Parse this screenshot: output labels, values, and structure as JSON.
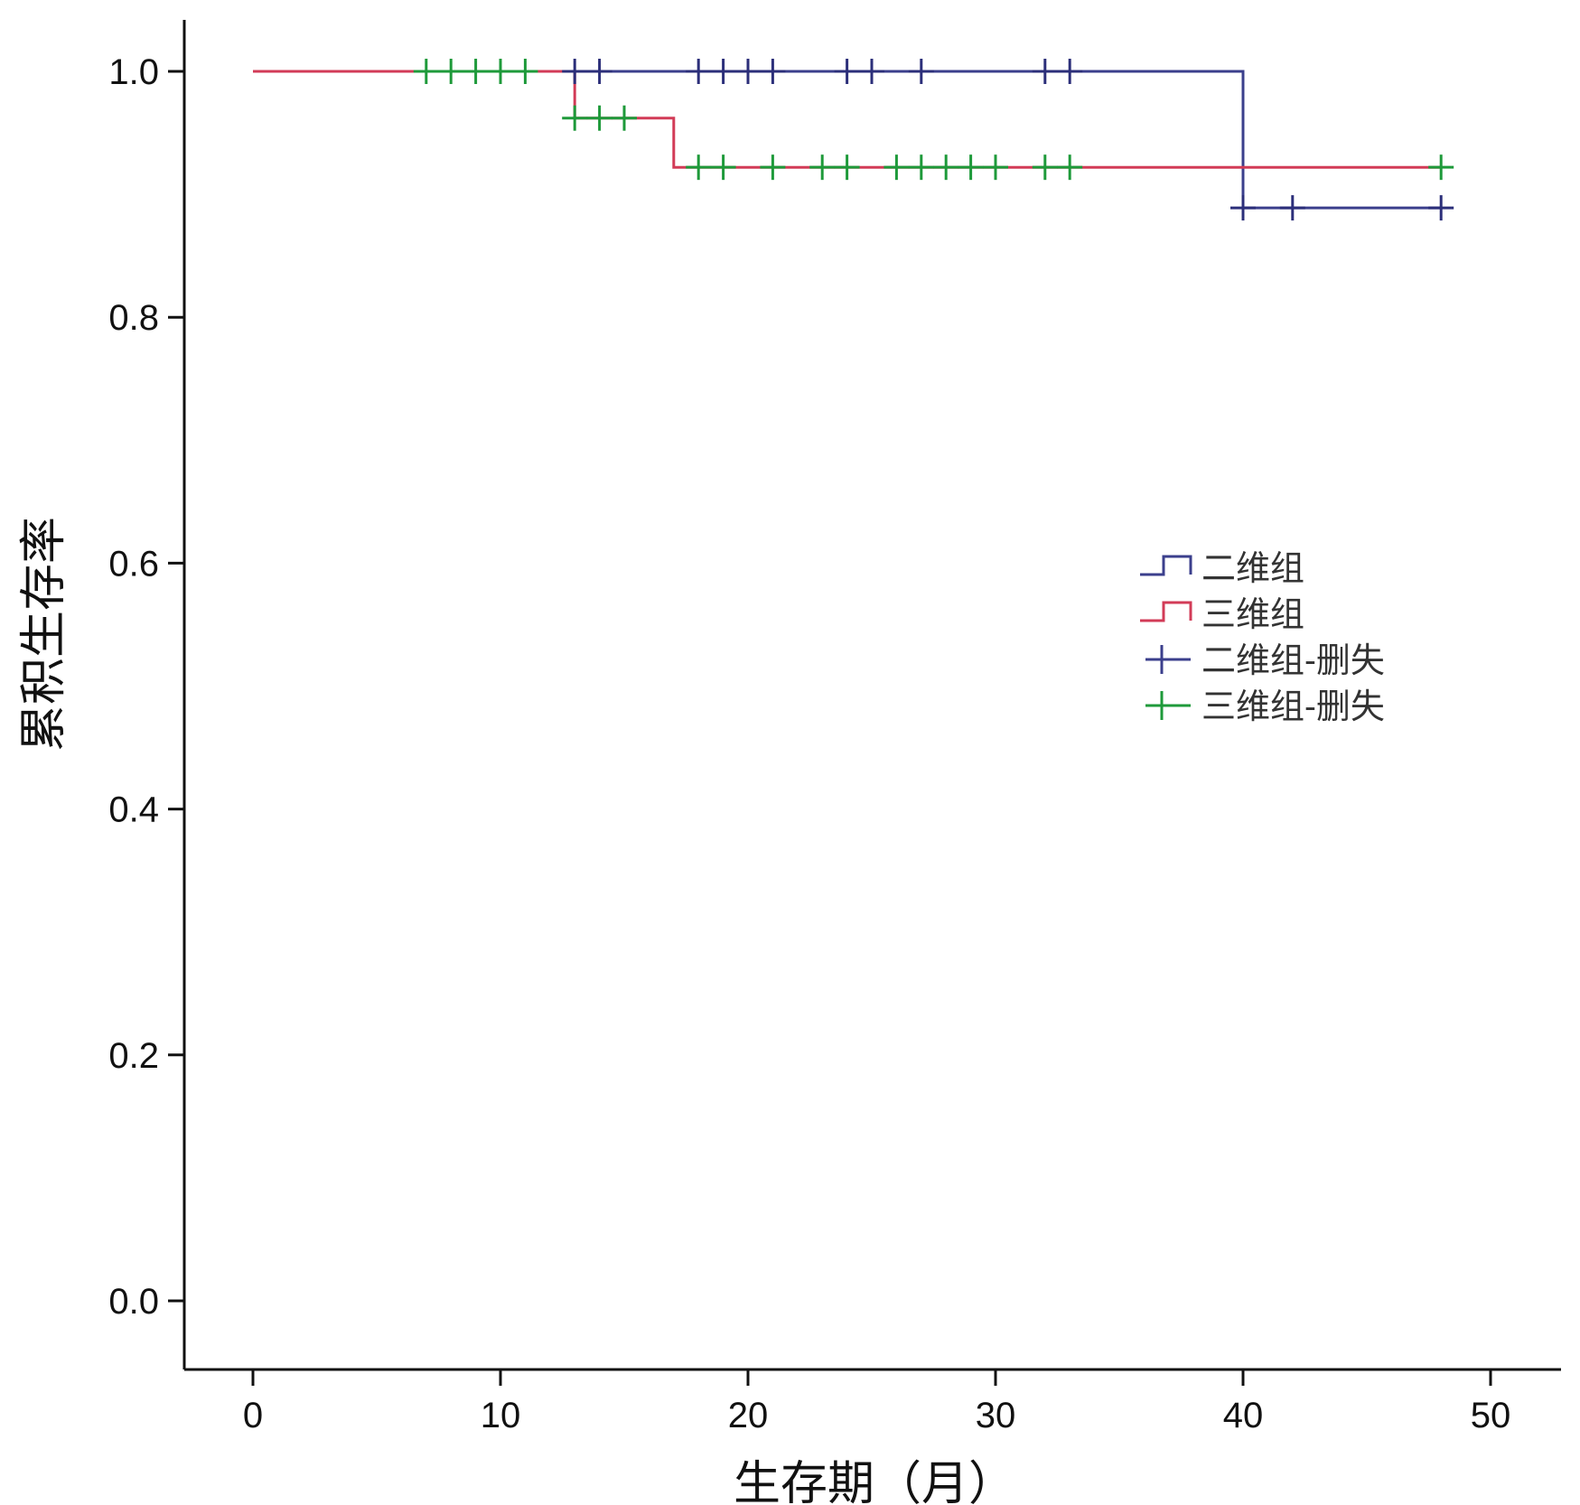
{
  "chart_data": {
    "type": "line",
    "subtype": "kaplan-meier-step",
    "xlabel": "生存期（月）",
    "ylabel": "累积生存率",
    "xlim": [
      -3,
      53
    ],
    "ylim": [
      -0.05,
      1.04
    ],
    "xticks": [
      0,
      10,
      20,
      30,
      40,
      50
    ],
    "xtick_labels": [
      "0",
      "10",
      "20",
      "30",
      "40",
      "50"
    ],
    "yticks": [
      0.0,
      0.2,
      0.4,
      0.6,
      0.8,
      1.0
    ],
    "ytick_labels": [
      "0.0",
      "0.2",
      "0.4",
      "0.6",
      "0.8",
      "1.0"
    ],
    "grid": false,
    "legend_position": "right",
    "legend": [
      {
        "label": "二维组",
        "kind": "line",
        "color": "#3b3f8c"
      },
      {
        "label": "三维组",
        "kind": "line",
        "color": "#d23b57"
      },
      {
        "label": "二维组-删失",
        "kind": "censor",
        "color": "#3b3f8c"
      },
      {
        "label": "三维组-删失",
        "kind": "censor",
        "color": "#1e9a3a"
      }
    ],
    "series": [
      {
        "name": "二维组",
        "color": "#3b3f8c",
        "censor_color": "#2c2f7a",
        "steps": [
          [
            0,
            1.0
          ],
          [
            40,
            1.0
          ],
          [
            40,
            0.889
          ],
          [
            48,
            0.889
          ]
        ],
        "censored": [
          [
            13,
            1.0
          ],
          [
            14,
            1.0
          ],
          [
            18,
            1.0
          ],
          [
            19,
            1.0
          ],
          [
            20,
            1.0
          ],
          [
            21,
            1.0
          ],
          [
            24,
            1.0
          ],
          [
            25,
            1.0
          ],
          [
            27,
            1.0
          ],
          [
            32,
            1.0
          ],
          [
            33,
            1.0
          ],
          [
            40,
            0.889
          ],
          [
            42,
            0.889
          ],
          [
            48,
            0.889
          ]
        ]
      },
      {
        "name": "三维组",
        "color": "#d23b57",
        "censor_color": "#1e9a3a",
        "steps": [
          [
            0,
            1.0
          ],
          [
            13,
            1.0
          ],
          [
            13,
            0.962
          ],
          [
            17,
            0.962
          ],
          [
            17,
            0.922
          ],
          [
            48,
            0.922
          ]
        ],
        "censored": [
          [
            7,
            1.0
          ],
          [
            8,
            1.0
          ],
          [
            9,
            1.0
          ],
          [
            10,
            1.0
          ],
          [
            11,
            1.0
          ],
          [
            13,
            0.962
          ],
          [
            14,
            0.962
          ],
          [
            15,
            0.962
          ],
          [
            18,
            0.922
          ],
          [
            19,
            0.922
          ],
          [
            21,
            0.922
          ],
          [
            23,
            0.922
          ],
          [
            24,
            0.922
          ],
          [
            26,
            0.922
          ],
          [
            27,
            0.922
          ],
          [
            28,
            0.922
          ],
          [
            29,
            0.922
          ],
          [
            30,
            0.922
          ],
          [
            32,
            0.922
          ],
          [
            33,
            0.922
          ],
          [
            48,
            0.922
          ]
        ]
      }
    ]
  }
}
